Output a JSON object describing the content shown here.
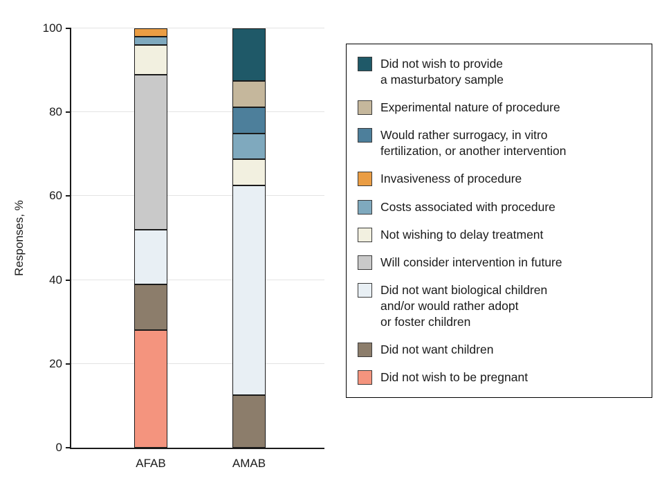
{
  "chart_data": {
    "type": "bar",
    "stacked": true,
    "title": "",
    "xlabel": "",
    "ylabel": "Responses, %",
    "ylim": [
      0,
      100
    ],
    "y_ticks": [
      0,
      20,
      40,
      60,
      80,
      100
    ],
    "grid": true,
    "categories": [
      "AFAB",
      "AMAB"
    ],
    "series": [
      {
        "name": "Did not wish to be pregnant",
        "color": "#F4947E",
        "values": [
          28,
          0
        ]
      },
      {
        "name": "Did not want children",
        "color": "#8C7D6B",
        "values": [
          11,
          12.5
        ]
      },
      {
        "name": "Did not want biological children and/or would rather adopt or foster children",
        "color": "#E8EFF4",
        "values": [
          13,
          50
        ]
      },
      {
        "name": "Will consider intervention in future",
        "color": "#C9C9C9",
        "values": [
          37,
          0
        ]
      },
      {
        "name": "Not wishing to delay treatment",
        "color": "#F2F0E0",
        "values": [
          7,
          6.25
        ]
      },
      {
        "name": "Costs associated with procedure",
        "color": "#7FA9BE",
        "values": [
          2,
          6.25
        ]
      },
      {
        "name": "Would rather surrogacy, in vitro fertilization, or another intervention",
        "color": "#4D7F9B",
        "values": [
          0,
          6.25
        ]
      },
      {
        "name": "Invasiveness of procedure",
        "color": "#EA9D44",
        "values": [
          2,
          0
        ]
      },
      {
        "name": "Experimental nature of procedure",
        "color": "#C5B79C",
        "values": [
          0,
          6.25
        ]
      },
      {
        "name": "Did not wish to provide a masturbatory sample",
        "color": "#1F5968",
        "values": [
          0,
          12.5
        ]
      }
    ],
    "legend": {
      "position": "right",
      "items": [
        {
          "label": "Did not wish to provide\na masturbatory sample",
          "color": "#1F5968"
        },
        {
          "label": "Experimental nature of procedure",
          "color": "#C5B79C"
        },
        {
          "label": "Would rather surrogacy, in vitro\nfertilization, or another intervention",
          "color": "#4D7F9B"
        },
        {
          "label": "Invasiveness of procedure",
          "color": "#EA9D44"
        },
        {
          "label": "Costs associated with procedure",
          "color": "#7FA9BE"
        },
        {
          "label": "Not wishing to delay treatment",
          "color": "#F2F0E0"
        },
        {
          "label": "Will consider intervention in future",
          "color": "#C9C9C9"
        },
        {
          "label": "Did not want biological children\nand/or would rather adopt\nor foster children",
          "color": "#E8EFF4"
        },
        {
          "label": "Did not want children",
          "color": "#8C7D6B"
        },
        {
          "label": "Did not wish to be pregnant",
          "color": "#F4947E"
        }
      ]
    }
  }
}
